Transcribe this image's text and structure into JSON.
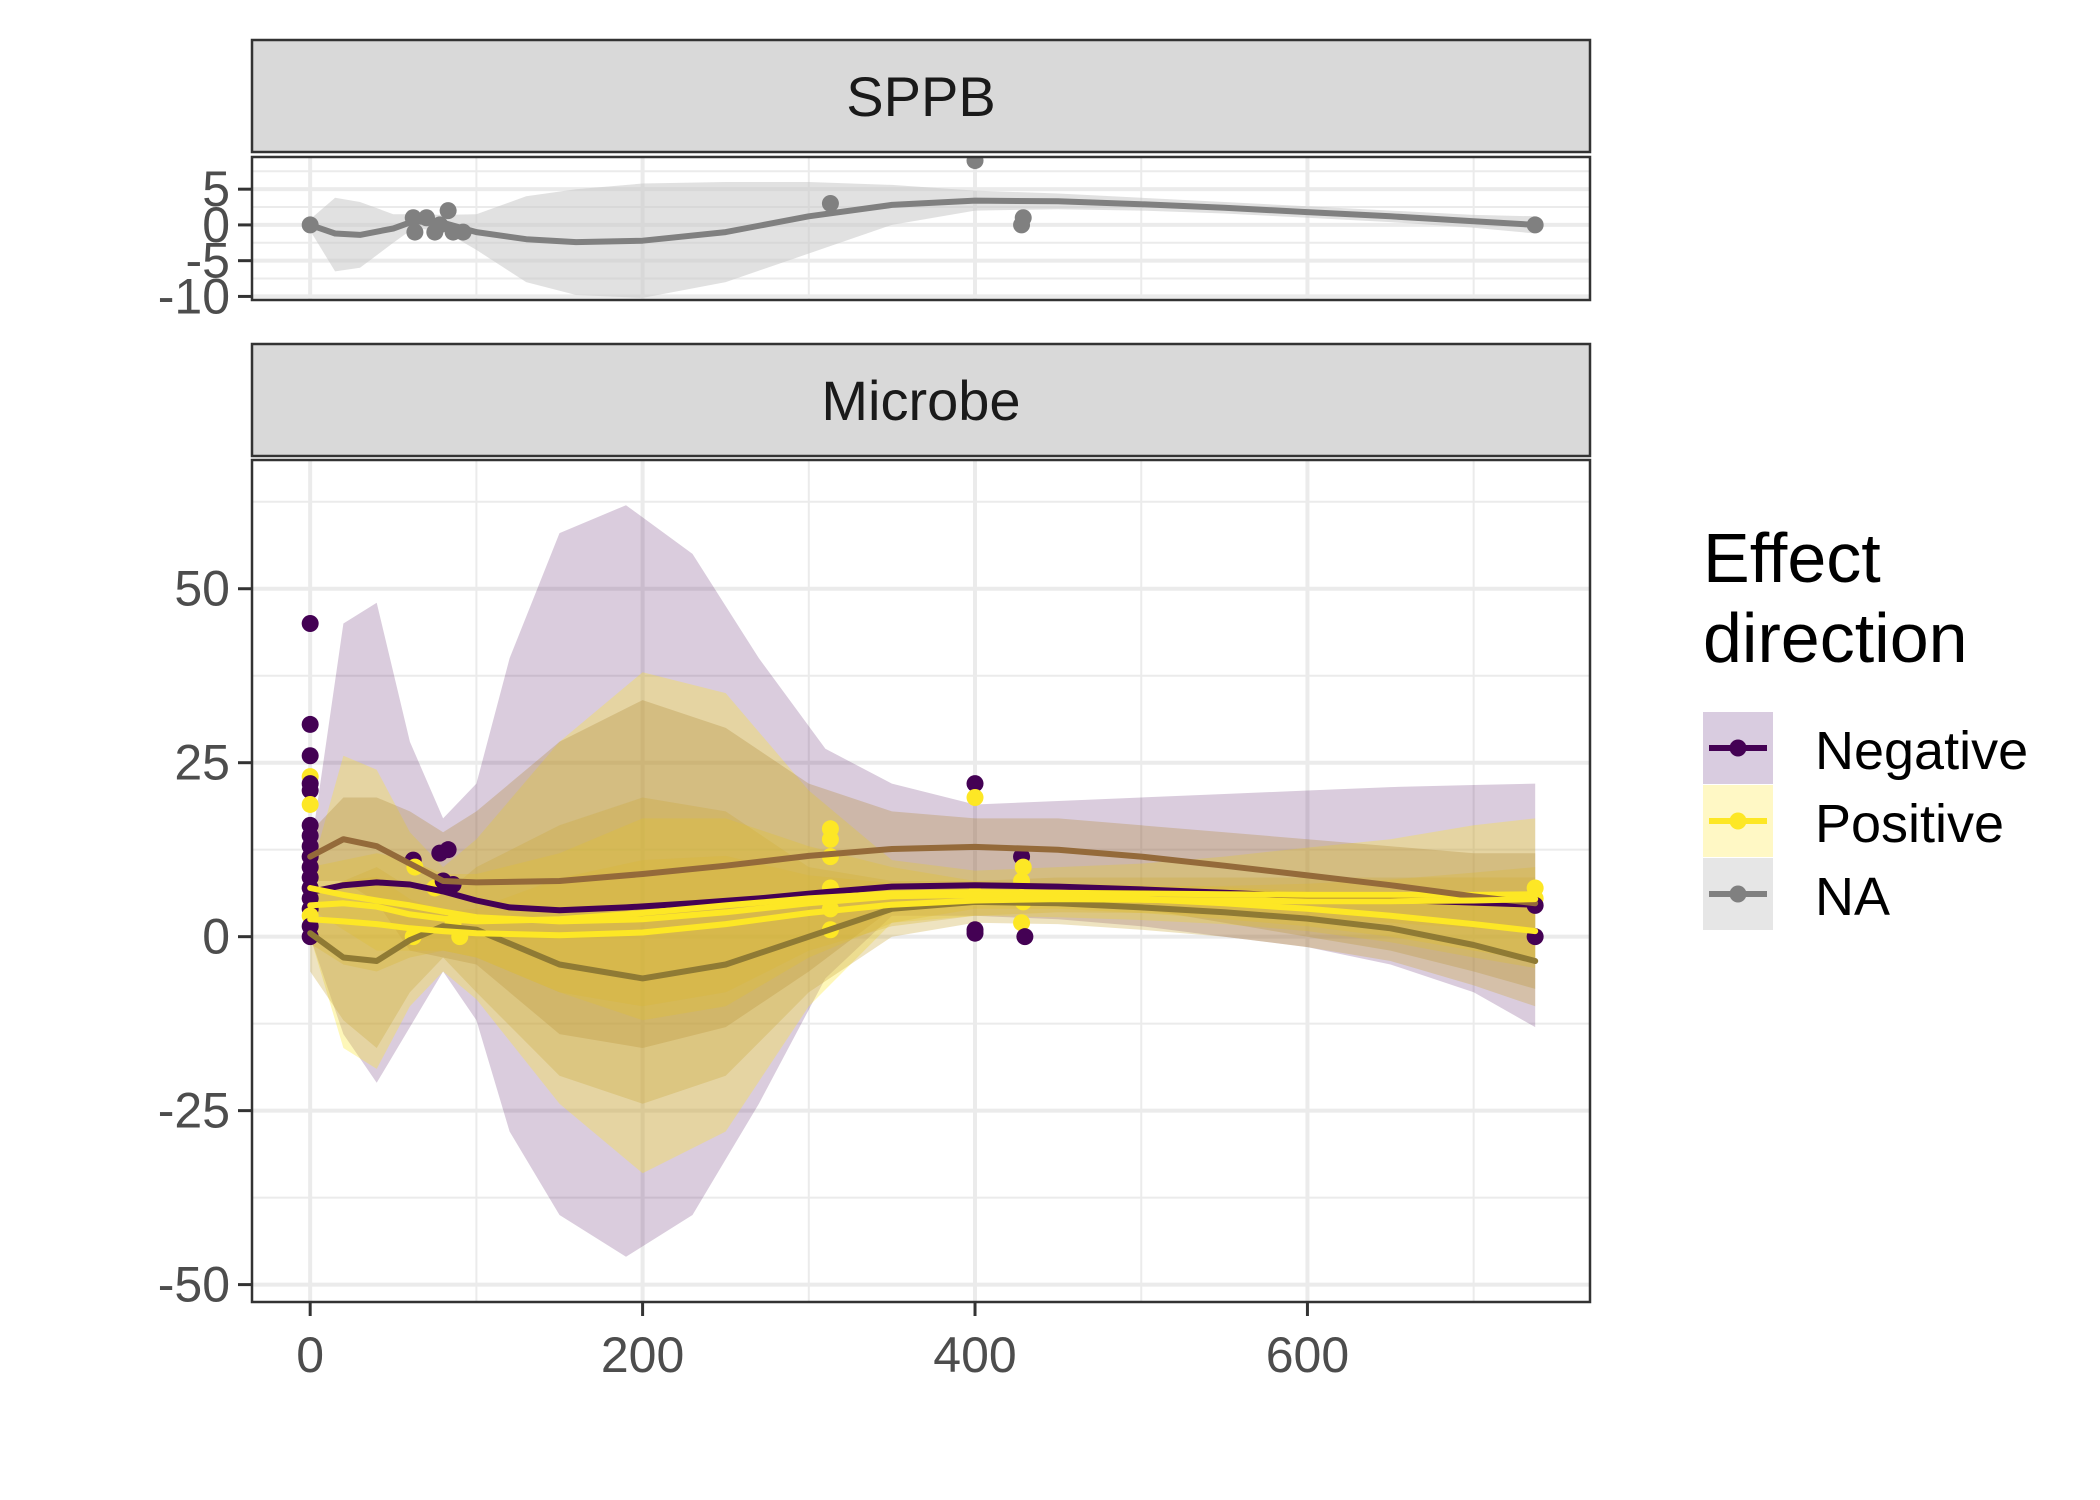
{
  "chart_data": {
    "type": "scatter",
    "x_ticks": [
      0,
      200,
      400,
      600
    ],
    "xlim": [
      -35,
      770
    ],
    "legend": {
      "title_lines": [
        "Effect",
        "direction"
      ],
      "position": "right",
      "entries": [
        {
          "name": "Negative",
          "color": "#440154"
        },
        {
          "name": "Positive",
          "color": "#FDE725"
        },
        {
          "name": "NA",
          "color": "#808080"
        }
      ]
    },
    "panels": [
      {
        "strip": "SPPB",
        "ylim": [
          -10.5,
          9.5
        ],
        "y_ticks": [
          5,
          0,
          -5,
          -10
        ],
        "y_tick_labels": [
          "5",
          "0",
          "-5",
          "-10"
        ],
        "grid": true,
        "points": [
          {
            "x": 0,
            "y": 0,
            "g": "NA"
          },
          {
            "x": 62,
            "y": 1,
            "g": "NA"
          },
          {
            "x": 63,
            "y": -1,
            "g": "NA"
          },
          {
            "x": 70,
            "y": 1,
            "g": "NA"
          },
          {
            "x": 75,
            "y": -1,
            "g": "NA"
          },
          {
            "x": 78,
            "y": 0,
            "g": "NA"
          },
          {
            "x": 83,
            "y": 2,
            "g": "NA"
          },
          {
            "x": 86,
            "y": -1,
            "g": "NA"
          },
          {
            "x": 92,
            "y": -1,
            "g": "NA"
          },
          {
            "x": 313,
            "y": 3,
            "g": "NA"
          },
          {
            "x": 400,
            "y": 9,
            "g": "NA"
          },
          {
            "x": 428,
            "y": 0,
            "g": "NA"
          },
          {
            "x": 429,
            "y": 1,
            "g": "NA"
          },
          {
            "x": 737,
            "y": 0,
            "g": "NA"
          }
        ],
        "smooths": [
          {
            "g": "NA",
            "color": "#808080",
            "fill": "#c8c8c8",
            "x": [
              0,
              15,
              30,
              50,
              62,
              80,
              100,
              130,
              160,
              200,
              250,
              300,
              350,
              400,
              450,
              500,
              550,
              600,
              650,
              700,
              737
            ],
            "y": [
              0,
              -1.2,
              -1.4,
              -0.5,
              0.5,
              0.3,
              -1.0,
              -2.0,
              -2.4,
              -2.2,
              -1.0,
              1.2,
              2.8,
              3.4,
              3.3,
              2.9,
              2.4,
              1.8,
              1.2,
              0.5,
              0.0
            ],
            "lo": [
              -0.8,
              -6.5,
              -6.0,
              -2.5,
              -0.5,
              -0.8,
              -3.5,
              -8.0,
              -9.8,
              -10.2,
              -8.0,
              -4.0,
              0.0,
              2.0,
              2.2,
              2.0,
              1.6,
              1.0,
              0.4,
              -0.4,
              -1.2
            ],
            "hi": [
              0.8,
              3.8,
              3.2,
              1.5,
              1.5,
              1.4,
              1.5,
              4.0,
              5.0,
              5.8,
              6.0,
              6.0,
              5.6,
              4.8,
              4.4,
              3.8,
              3.2,
              2.6,
              2.0,
              1.4,
              1.2
            ]
          }
        ]
      },
      {
        "strip": "Microbe",
        "ylim": [
          -52.5,
          68.5
        ],
        "y_ticks": [
          50,
          25,
          0,
          -25,
          -50
        ],
        "y_tick_labels": [
          "50",
          "25",
          "0",
          "-25",
          "-50"
        ],
        "grid": true,
        "points": [
          {
            "x": 0,
            "y": 45,
            "g": "Negative"
          },
          {
            "x": 0,
            "y": 30.5,
            "g": "Negative"
          },
          {
            "x": 0,
            "y": 26,
            "g": "Negative"
          },
          {
            "x": 0,
            "y": 23,
            "g": "Positive"
          },
          {
            "x": 0,
            "y": 22,
            "g": "Negative"
          },
          {
            "x": 0,
            "y": 21,
            "g": "Negative"
          },
          {
            "x": 0,
            "y": 19,
            "g": "Positive"
          },
          {
            "x": 0,
            "y": 16,
            "g": "Negative"
          },
          {
            "x": 0,
            "y": 14.5,
            "g": "Negative"
          },
          {
            "x": 0,
            "y": 13,
            "g": "Negative"
          },
          {
            "x": 0,
            "y": 11.5,
            "g": "Negative"
          },
          {
            "x": 0,
            "y": 10,
            "g": "Negative"
          },
          {
            "x": 0,
            "y": 8.5,
            "g": "Negative"
          },
          {
            "x": 0,
            "y": 7,
            "g": "Negative"
          },
          {
            "x": 0,
            "y": 5.5,
            "g": "Negative"
          },
          {
            "x": 0,
            "y": 4,
            "g": "Negative"
          },
          {
            "x": 0,
            "y": 3,
            "g": "Positive"
          },
          {
            "x": 0,
            "y": 1.5,
            "g": "Negative"
          },
          {
            "x": 0,
            "y": 0,
            "g": "Negative"
          },
          {
            "x": 62,
            "y": 11,
            "g": "Negative"
          },
          {
            "x": 63,
            "y": 10,
            "g": "Positive"
          },
          {
            "x": 62,
            "y": 0,
            "g": "Positive"
          },
          {
            "x": 75,
            "y": 7,
            "g": "Positive"
          },
          {
            "x": 78,
            "y": 12,
            "g": "Negative"
          },
          {
            "x": 80,
            "y": 8,
            "g": "Negative"
          },
          {
            "x": 83,
            "y": 12.5,
            "g": "Negative"
          },
          {
            "x": 86,
            "y": 7.5,
            "g": "Negative"
          },
          {
            "x": 86,
            "y": 2,
            "g": "Positive"
          },
          {
            "x": 90,
            "y": 0,
            "g": "Positive"
          },
          {
            "x": 313,
            "y": 15.5,
            "g": "Positive"
          },
          {
            "x": 313,
            "y": 14,
            "g": "Positive"
          },
          {
            "x": 313,
            "y": 11.5,
            "g": "Positive"
          },
          {
            "x": 313,
            "y": 7,
            "g": "Positive"
          },
          {
            "x": 313,
            "y": 4,
            "g": "Positive"
          },
          {
            "x": 313,
            "y": 1,
            "g": "Positive"
          },
          {
            "x": 400,
            "y": 22,
            "g": "Negative"
          },
          {
            "x": 400,
            "y": 20,
            "g": "Positive"
          },
          {
            "x": 400,
            "y": 6,
            "g": "Positive"
          },
          {
            "x": 400,
            "y": 1,
            "g": "Negative"
          },
          {
            "x": 400,
            "y": 0.5,
            "g": "Negative"
          },
          {
            "x": 428,
            "y": 11.5,
            "g": "Negative"
          },
          {
            "x": 429,
            "y": 10,
            "g": "Positive"
          },
          {
            "x": 428,
            "y": 8,
            "g": "Positive"
          },
          {
            "x": 429,
            "y": 5,
            "g": "Positive"
          },
          {
            "x": 428,
            "y": 2,
            "g": "Positive"
          },
          {
            "x": 430,
            "y": 0,
            "g": "Negative"
          },
          {
            "x": 737,
            "y": 7,
            "g": "Positive"
          },
          {
            "x": 737,
            "y": 5.5,
            "g": "Positive"
          },
          {
            "x": 737,
            "y": 4.5,
            "g": "Negative"
          },
          {
            "x": 737,
            "y": 0,
            "g": "Negative"
          }
        ],
        "smooths": [
          {
            "g": "Negative",
            "color": "#440154",
            "fill": "#440154",
            "x": [
              0,
              20,
              40,
              60,
              80,
              100,
              120,
              150,
              190,
              230,
              270,
              310,
              350,
              400,
              450,
              500,
              550,
              600,
              650,
              700,
              737
            ],
            "y": [
              6.4,
              7.4,
              7.8,
              7.5,
              6.5,
              5.2,
              4.2,
              3.8,
              4.2,
              4.8,
              5.5,
              6.4,
              7.2,
              7.4,
              7.2,
              6.8,
              6.3,
              5.8,
              5.3,
              4.9,
              4.6
            ],
            "lo": [
              0,
              -14,
              -21,
              -13,
              -5,
              -12,
              -28,
              -40,
              -46,
              -40,
              -24,
              -6,
              3,
              3,
              2.5,
              1.5,
              0,
              -1.5,
              -4,
              -8,
              -13
            ],
            "hi": [
              12,
              45,
              48,
              28,
              17,
              22,
              40,
              58,
              62,
              55,
              40,
              27,
              22,
              19,
              19.5,
              20,
              20.5,
              21,
              21.5,
              21.8,
              22
            ]
          },
          {
            "g": "Positive",
            "color": "#FDE725",
            "fill": "#FDE725",
            "x": [
              0,
              20,
              40,
              60,
              80,
              100,
              150,
              200,
              250,
              300,
              350,
              400,
              450,
              500,
              550,
              600,
              650,
              700,
              737
            ],
            "y": [
              4.5,
              4.8,
              4.3,
              3.2,
              2.6,
              2.2,
              2.5,
              3.4,
              4.5,
              5.5,
              6.2,
              6.4,
              6.3,
              6.2,
              6.1,
              6.0,
              6.0,
              6.0,
              6.1
            ],
            "lo": [
              0,
              -16,
              -19,
              -10,
              -5,
              -9,
              -24,
              -34,
              -28,
              -10,
              2,
              3,
              2.8,
              2.4,
              1.8,
              0.8,
              -0.8,
              -3,
              -4.5
            ],
            "hi": [
              9,
              26,
              24,
              15,
              10,
              14,
              28,
              38,
              35,
              21,
              11,
              9.5,
              10,
              10.5,
              11.5,
              12.8,
              14,
              16,
              17
            ]
          },
          {
            "g": "Negative",
            "color": "#946a3a",
            "fill": "#b08d3a",
            "x": [
              0,
              20,
              40,
              60,
              80,
              100,
              150,
              200,
              250,
              300,
              350,
              400,
              450,
              500,
              550,
              600,
              650,
              700,
              737
            ],
            "y": [
              11.5,
              14,
              13,
              10.5,
              8,
              7.8,
              8,
              9,
              10.2,
              11.6,
              12.6,
              12.9,
              12.5,
              11.5,
              10.2,
              8.8,
              7.4,
              5.8,
              4.8
            ],
            "lo": [
              8,
              8,
              5,
              -2,
              -3,
              -4,
              -14,
              -16,
              -13,
              -5,
              4,
              6,
              6,
              4,
              2,
              0,
              -2,
              -5,
              -7.5
            ],
            "hi": [
              15,
              20,
              20,
              18,
              15,
              18,
              28,
              34,
              30,
              22,
              18,
              17,
              17,
              16,
              15,
              14,
              13,
              12,
              12
            ]
          },
          {
            "g": "Positive",
            "color": "#8f7a34",
            "fill": "#c9a93a",
            "x": [
              0,
              20,
              40,
              60,
              80,
              100,
              150,
              200,
              250,
              300,
              350,
              400,
              450,
              500,
              550,
              600,
              650,
              700,
              737
            ],
            "y": [
              0.5,
              -3,
              -3.5,
              -0.5,
              1.5,
              1,
              -4,
              -6,
              -4,
              0,
              4,
              5,
              4.8,
              4.2,
              3.5,
              2.6,
              1.2,
              -1.2,
              -3.5
            ],
            "lo": [
              -5,
              -12,
              -16,
              -8,
              -3,
              -8,
              -20,
              -24,
              -20,
              -8,
              0,
              2,
              1.8,
              1,
              0,
              -1.5,
              -3.5,
              -7,
              -10
            ],
            "hi": [
              6,
              8,
              10,
              7,
              6,
              10,
              16,
              20,
              18,
              10,
              8,
              8,
              8.5,
              8.5,
              8.5,
              8.5,
              8.5,
              8.5,
              8.5
            ]
          },
          {
            "g": "Positive",
            "color": "#FDE725",
            "fill": "#e0c030",
            "x": [
              0,
              20,
              40,
              60,
              80,
              100,
              150,
              200,
              250,
              300,
              350,
              400,
              450,
              500,
              550,
              600,
              650,
              700,
              737
            ],
            "y": [
              7,
              6,
              5.2,
              4.5,
              3.6,
              2.8,
              2.2,
              2.5,
              3.5,
              4.8,
              5.8,
              6.0,
              5.8,
              5.4,
              4.8,
              4.0,
              3.0,
              1.8,
              0.8
            ],
            "lo": [
              4,
              1,
              -2,
              -2,
              -2,
              -3,
              -8,
              -12,
              -10,
              -3,
              2,
              4,
              4,
              3.4,
              2.5,
              1.5,
              0,
              -2,
              -3.5
            ],
            "hi": [
              10,
              11,
              12,
              11,
              9,
              9,
              12,
              17,
              17,
              13,
              10,
              8,
              7.6,
              7.4,
              7.1,
              6.5,
              6,
              5.6,
              5.1
            ]
          },
          {
            "g": "Positive",
            "color": "#FDE725",
            "fill": "#d9b734",
            "x": [
              0,
              20,
              40,
              60,
              80,
              100,
              150,
              200,
              250,
              300,
              350,
              400,
              450,
              500,
              550,
              600,
              650,
              700,
              737
            ],
            "y": [
              2.5,
              2.2,
              1.8,
              1.2,
              0.8,
              0.5,
              0.2,
              0.6,
              1.8,
              3.4,
              4.6,
              5.2,
              5.4,
              5.3,
              5.2,
              5.1,
              5.1,
              5.2,
              5.4
            ],
            "lo": [
              -1,
              -4,
              -5,
              -3,
              -2,
              -3,
              -8,
              -10,
              -8,
              -2,
              1.5,
              3,
              3.5,
              3.4,
              3.1,
              2.6,
              2,
              1.2,
              0.8
            ],
            "hi": [
              6,
              8,
              8.6,
              5.4,
              3.6,
              4,
              8.4,
              11,
              11.6,
              8.8,
              7.7,
              7.4,
              7.3,
              7.2,
              7.3,
              7.6,
              8.2,
              9.2,
              10
            ]
          }
        ]
      }
    ]
  }
}
